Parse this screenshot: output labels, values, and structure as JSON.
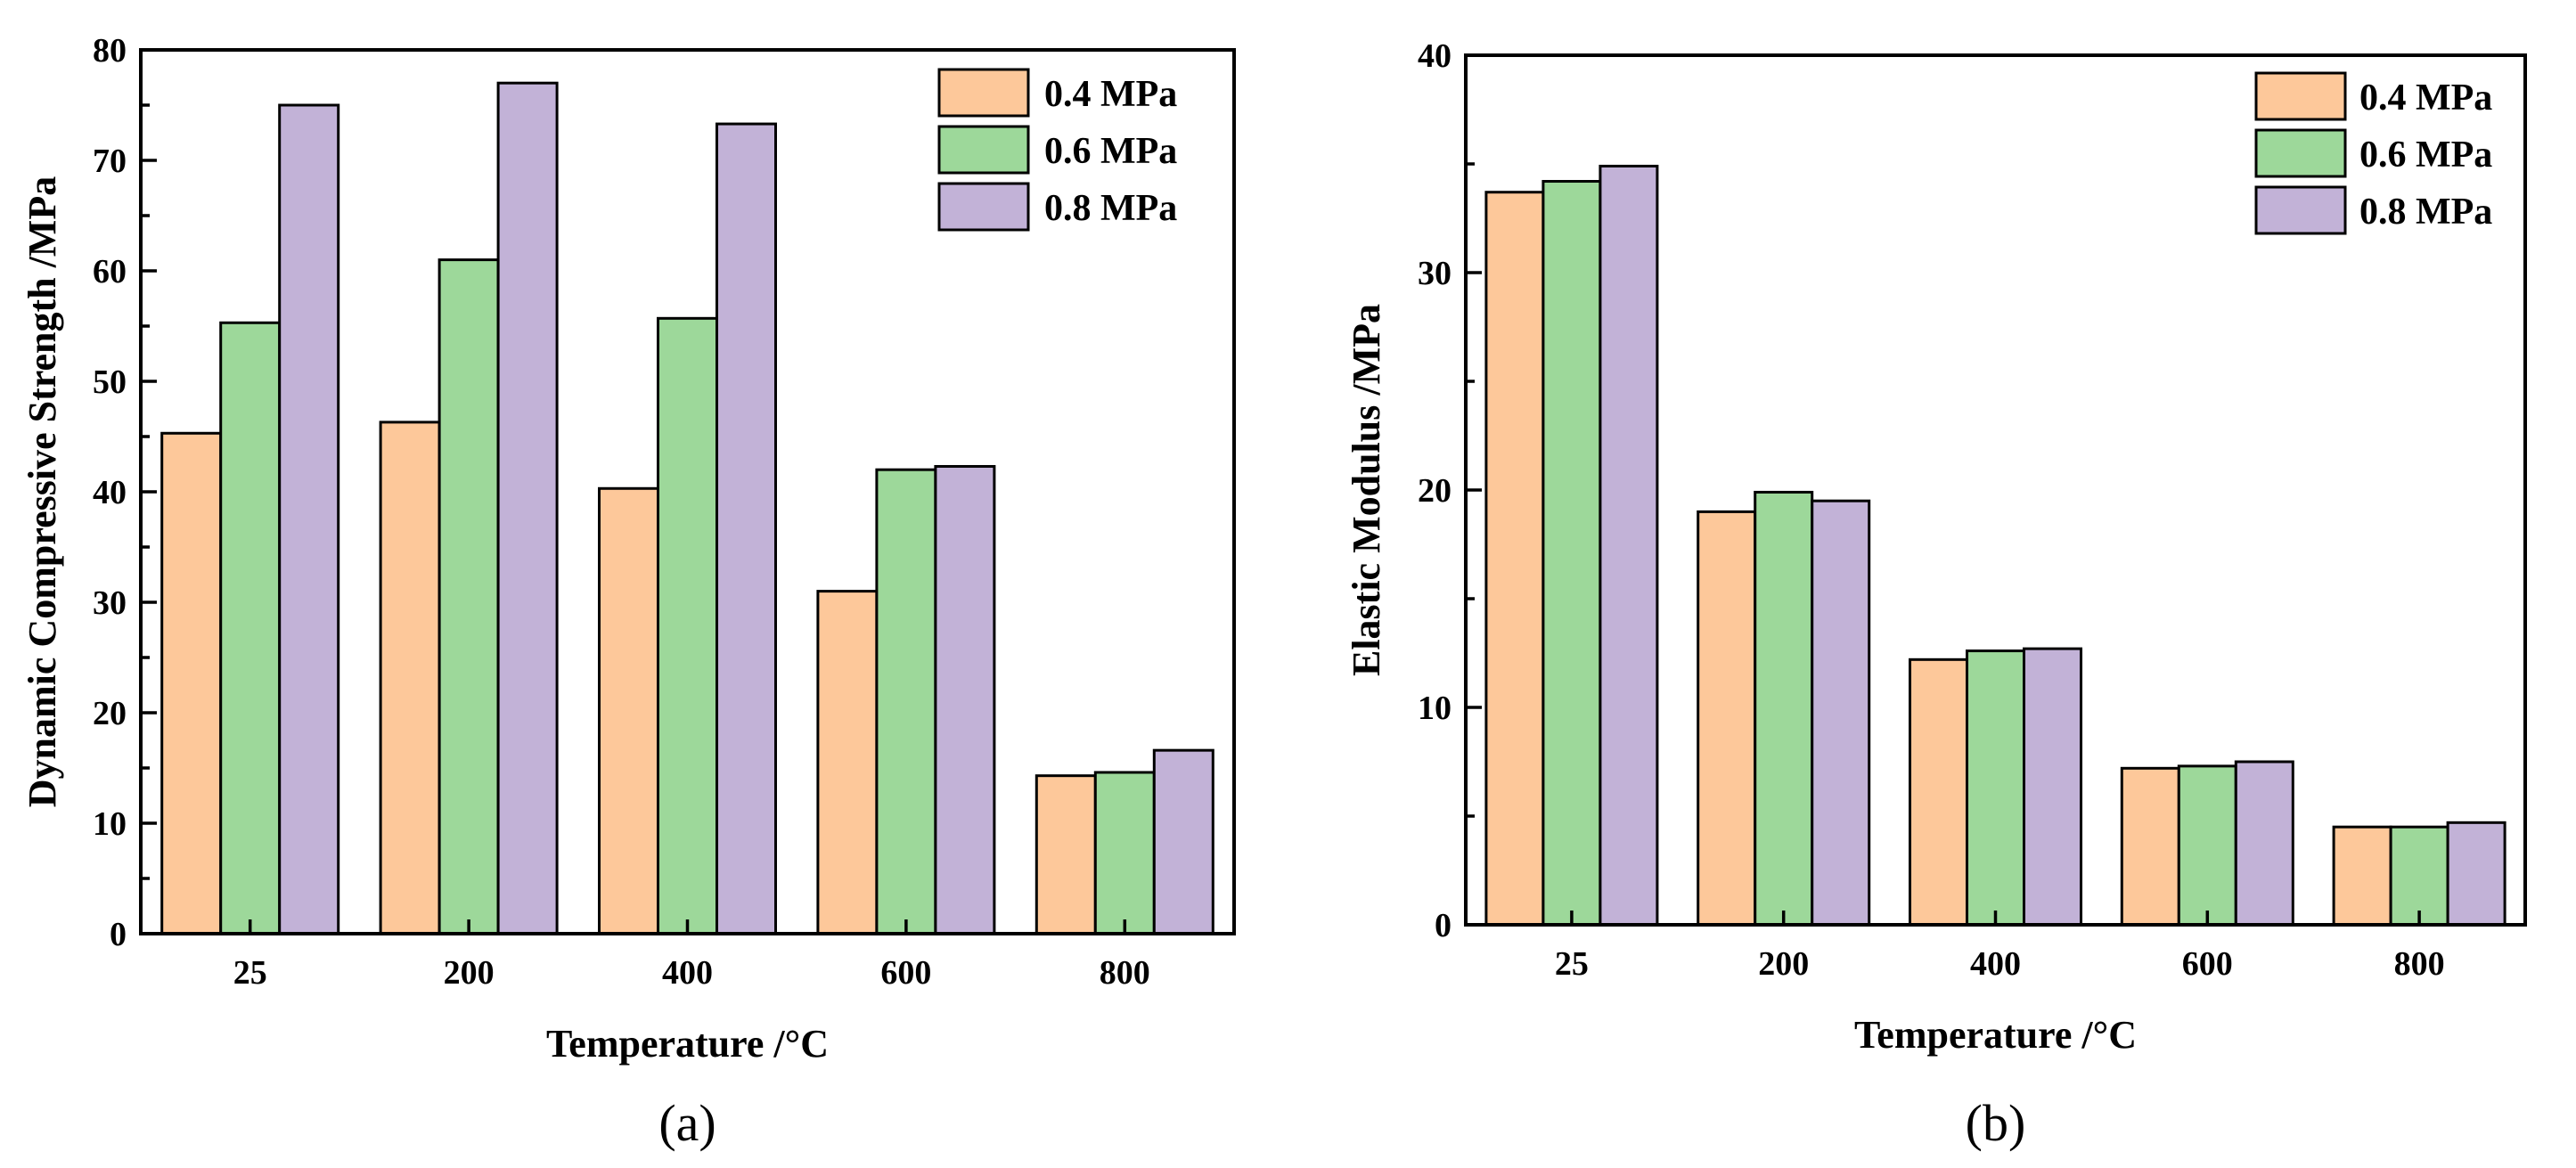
{
  "colors": {
    "s04": "#fdc89a",
    "s06": "#9dd89a",
    "s08": "#c2b2d7"
  },
  "chart_data": [
    {
      "type": "bar",
      "panel_label": "(a)",
      "xlabel": "Temperature /°C",
      "ylabel": "Dynamic Compressive Strength /MPa",
      "categories": [
        "25",
        "200",
        "400",
        "600",
        "800"
      ],
      "ylim": [
        0,
        80
      ],
      "yticks": [
        0,
        10,
        20,
        30,
        40,
        50,
        60,
        70,
        80
      ],
      "legend_position": "top-right",
      "series": [
        {
          "name": "0.4 MPa",
          "color": "#fdc89a",
          "values": [
            45.3,
            46.3,
            40.3,
            31.0,
            14.3
          ]
        },
        {
          "name": "0.6 MPa",
          "color": "#9dd89a",
          "values": [
            55.3,
            61.0,
            55.7,
            42.0,
            14.6
          ]
        },
        {
          "name": "0.8 MPa",
          "color": "#c2b2d7",
          "values": [
            75.0,
            77.0,
            73.3,
            42.3,
            16.6
          ]
        }
      ]
    },
    {
      "type": "bar",
      "panel_label": "(b)",
      "xlabel": "Temperature /°C",
      "ylabel": "Elastic Modulus /MPa",
      "categories": [
        "25",
        "200",
        "400",
        "600",
        "800"
      ],
      "ylim": [
        0,
        40
      ],
      "yticks": [
        0,
        10,
        20,
        30,
        40
      ],
      "legend_position": "top-right",
      "series": [
        {
          "name": "0.4 MPa",
          "color": "#fdc89a",
          "values": [
            33.7,
            19.0,
            12.2,
            7.2,
            4.5
          ]
        },
        {
          "name": "0.6 MPa",
          "color": "#9dd89a",
          "values": [
            34.2,
            19.9,
            12.6,
            7.3,
            4.5
          ]
        },
        {
          "name": "0.8 MPa",
          "color": "#c2b2d7",
          "values": [
            34.9,
            19.5,
            12.7,
            7.5,
            4.7
          ]
        }
      ]
    }
  ]
}
